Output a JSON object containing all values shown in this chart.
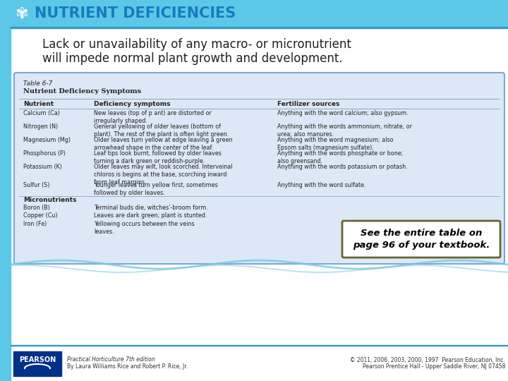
{
  "title": "NUTRIENT DEFICIENCIES",
  "title_color": "#1a7abf",
  "header_bg": "#5bc8e8",
  "side_bar_color": "#5bc8e8",
  "body_bg": "#ffffff",
  "subtitle_line1": "Lack or unavailability of any macro- or micronutrient",
  "subtitle_line2": "will impede normal plant growth and development.",
  "subtitle_color": "#222222",
  "table_title": "Table 6-7",
  "table_subtitle": "Nutrient Deficiency Symptoms",
  "table_headers": [
    "Nutrient",
    "Deficiency symptoms",
    "Fertilizer sources"
  ],
  "table_rows": [
    [
      "Calcium (Ca)",
      "New leaves (top of p ant) are distorted or\nirregularly shaped.",
      "Anything with the word calcium; also gypsum."
    ],
    [
      "Nitrogen (N)",
      "General yellowing of older leaves (bottom of\nplant). The rest of the plant is often light green.",
      "Anything with the words ammonium, nitrate, or\nurea; also manures."
    ],
    [
      "Magnesium (Mg)",
      "Older leaves turn yellow at edge leaving a green\narrowhead shape in the center of the leaf.",
      "Anything with the word magnesium; also\nEpsom salts (magnesium sulfate)."
    ],
    [
      "Phosphorus (P)",
      "Leaf tips look burnt, followed by older leaves\nturning a dark green or reddish-purple.",
      "Anything with the words phosphate or bone;\nalso greensand."
    ],
    [
      "Potassium (K)",
      "Older leaves may wilt, look scorched. Interveinal\nchloros is begins at the base, scorching inward\nfrom leaf margins.",
      "Anything with the words potassium or potash."
    ],
    [
      "Sulfur (S)",
      "Younger leaves turn yellow first, sometimes\nfollowed by older leaves.",
      "Anything with the word sulfate."
    ],
    [
      "Micronutrients",
      "",
      ""
    ],
    [
      "Boron (B)",
      "Terminal buds die, witches'-broom form.",
      ""
    ],
    [
      "Copper (Cu)",
      "Leaves are dark green; plant is stunted.",
      ""
    ],
    [
      "Iron (Fe)",
      "Yellowing occurs between the veins\nleaves.",
      ""
    ]
  ],
  "callout_text": "See the entire table on\npage 96 of your textbook.",
  "callout_bg": "#ffffff",
  "callout_border": "#666633",
  "callout_text_color": "#000000",
  "footer_left1": "Practical Horticulture 7th edition",
  "footer_left2": "By Laura Williams Rice and Robert P. Rice, Jr.",
  "footer_right1": "© 2011, 2006, 2003, 2000, 1997  Pearson Education, Inc.",
  "footer_right2": "Pearson Prentice Hall - Upper Saddle River, NJ 07458",
  "pearson_bg": "#003087",
  "table_bg": "#dce8f5",
  "table_border": "#7aaad4",
  "wave_color": "#7ac8e8",
  "separator_color": "#3399cc"
}
